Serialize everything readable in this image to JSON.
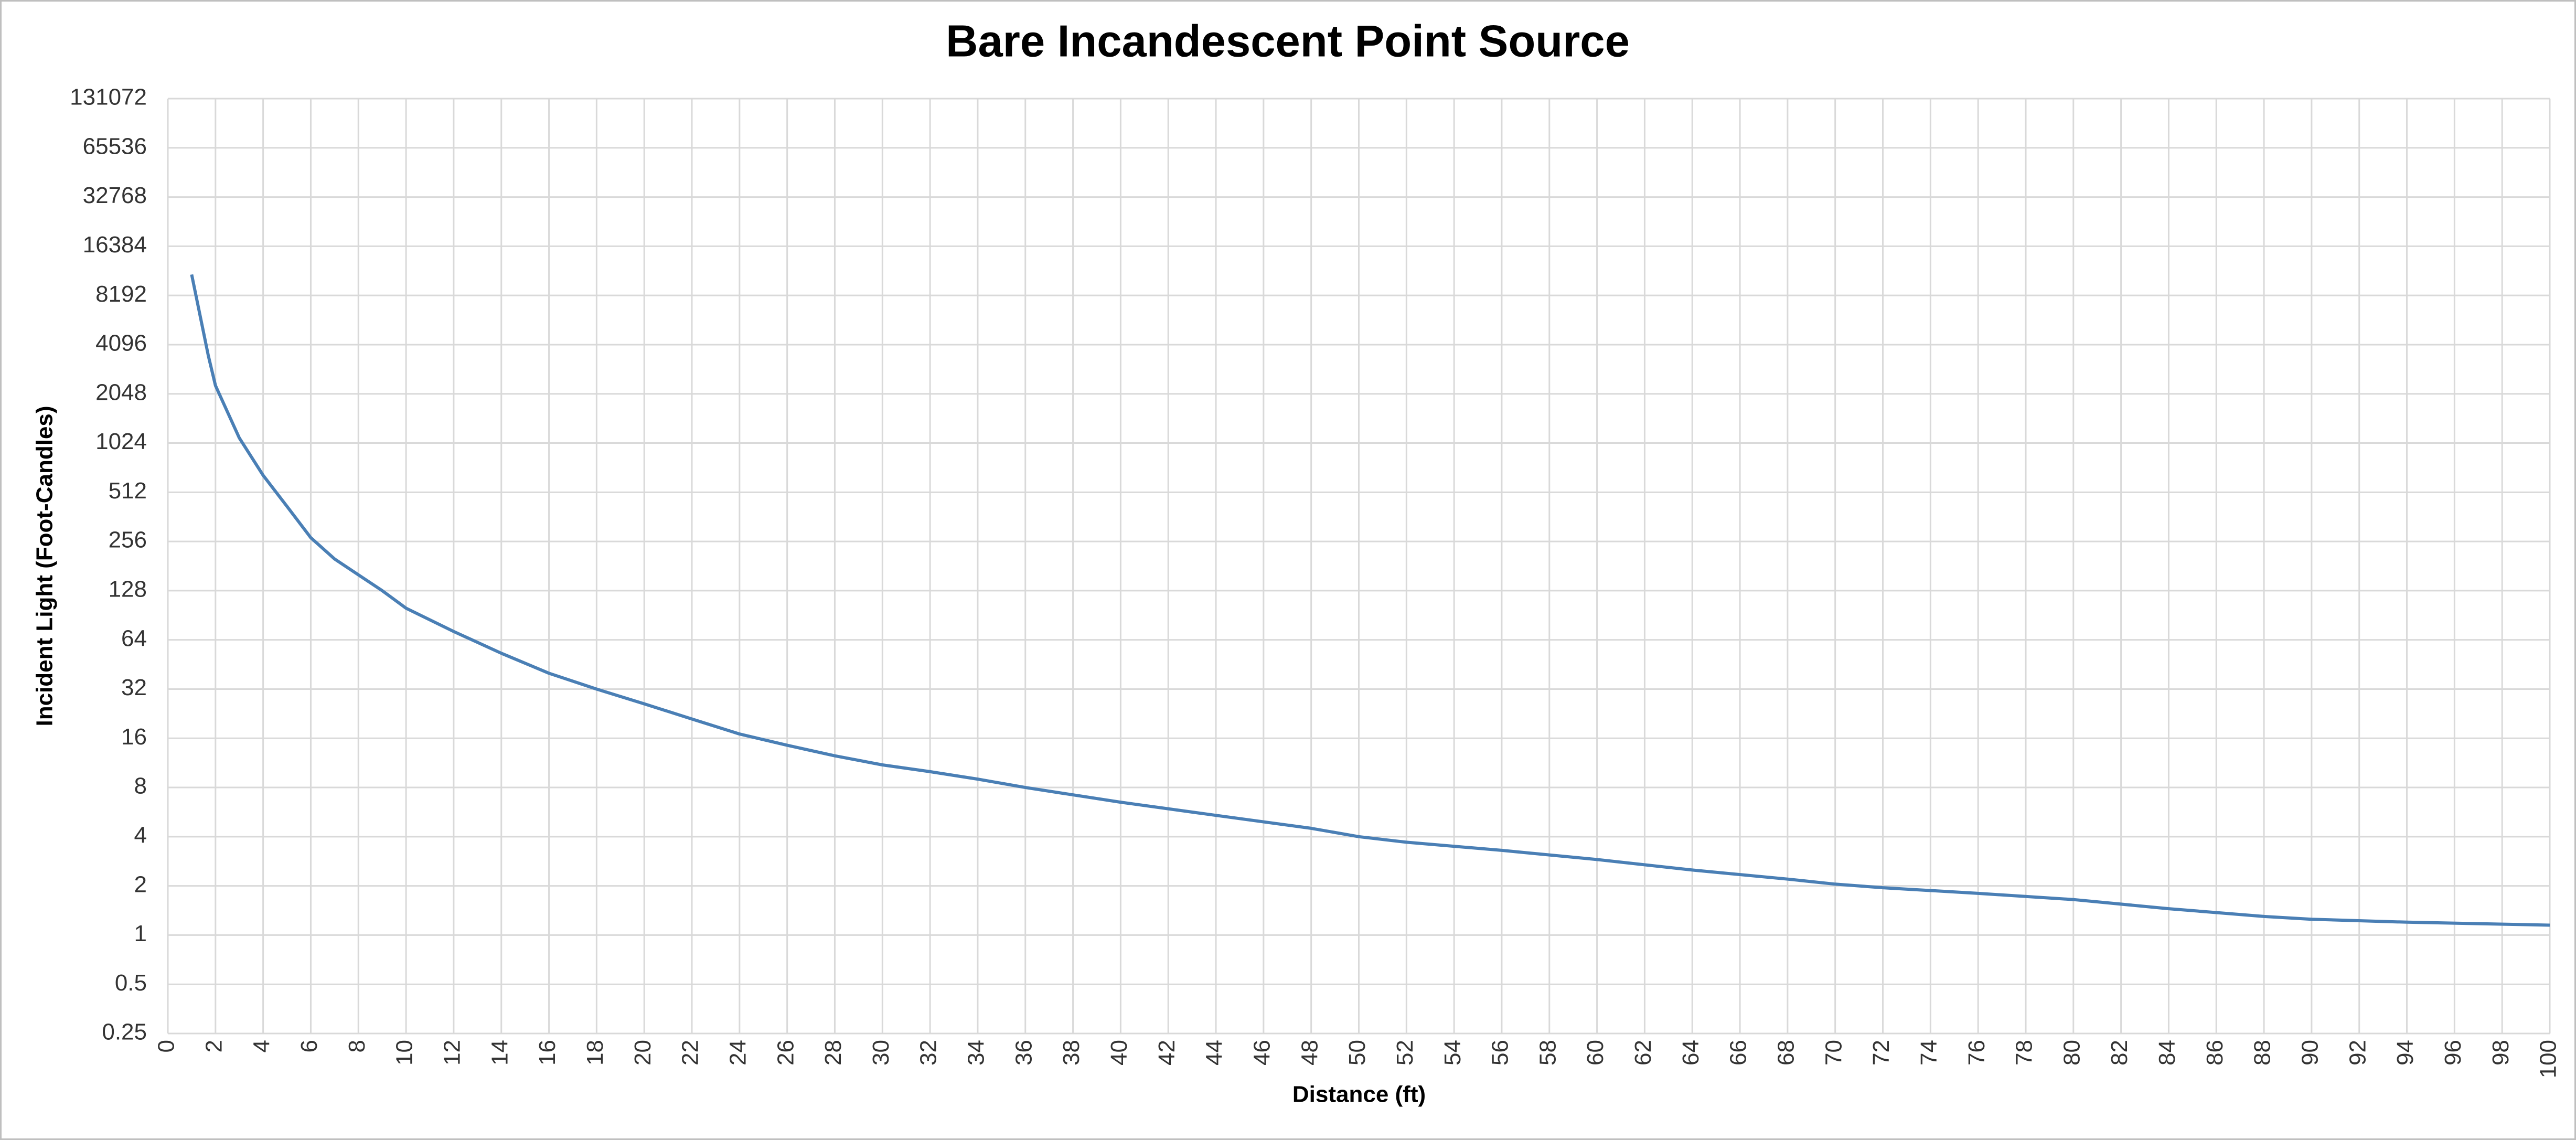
{
  "chart_data": {
    "type": "line",
    "title": "Bare Incandescent Point Source",
    "x_label": "Distance (ft)",
    "y_label": "Incident Light (Foot-Candles)",
    "x": [
      1,
      1.7,
      2,
      3,
      4,
      5,
      6,
      7,
      8,
      9,
      10,
      12,
      14,
      16,
      18,
      20,
      22,
      24,
      26,
      28,
      30,
      32,
      34,
      36,
      40,
      44,
      48,
      50,
      52,
      56,
      60,
      64,
      68,
      70,
      72,
      76,
      80,
      84,
      88,
      90,
      94,
      100
    ],
    "series": [
      {
        "name": "Incident Light",
        "color": "#4a7fb5",
        "values": [
          11000,
          3500,
          2300,
          1100,
          650,
          420,
          270,
          200,
          160,
          128,
          100,
          72,
          53,
          40,
          32,
          26,
          21,
          17,
          14.5,
          12.5,
          11,
          10,
          9,
          8,
          6.5,
          5.4,
          4.5,
          4,
          3.7,
          3.3,
          2.9,
          2.5,
          2.2,
          2.05,
          1.95,
          1.8,
          1.65,
          1.45,
          1.3,
          1.25,
          1.2,
          1.15
        ]
      }
    ],
    "xlim": [
      0,
      100
    ],
    "xticks": [
      0,
      2,
      4,
      6,
      8,
      10,
      12,
      14,
      16,
      18,
      20,
      22,
      24,
      26,
      28,
      30,
      32,
      34,
      36,
      38,
      40,
      42,
      44,
      46,
      48,
      50,
      52,
      54,
      56,
      58,
      60,
      62,
      64,
      66,
      68,
      70,
      72,
      74,
      76,
      78,
      80,
      82,
      84,
      86,
      88,
      90,
      92,
      94,
      96,
      98,
      100
    ],
    "ylim": [
      0.25,
      131072
    ],
    "yticks": [
      0.25,
      0.5,
      1,
      2,
      4,
      8,
      16,
      32,
      64,
      128,
      256,
      512,
      1024,
      2048,
      4096,
      8192,
      16384,
      32768,
      65536,
      131072
    ],
    "yscale": "log",
    "grid": true
  }
}
